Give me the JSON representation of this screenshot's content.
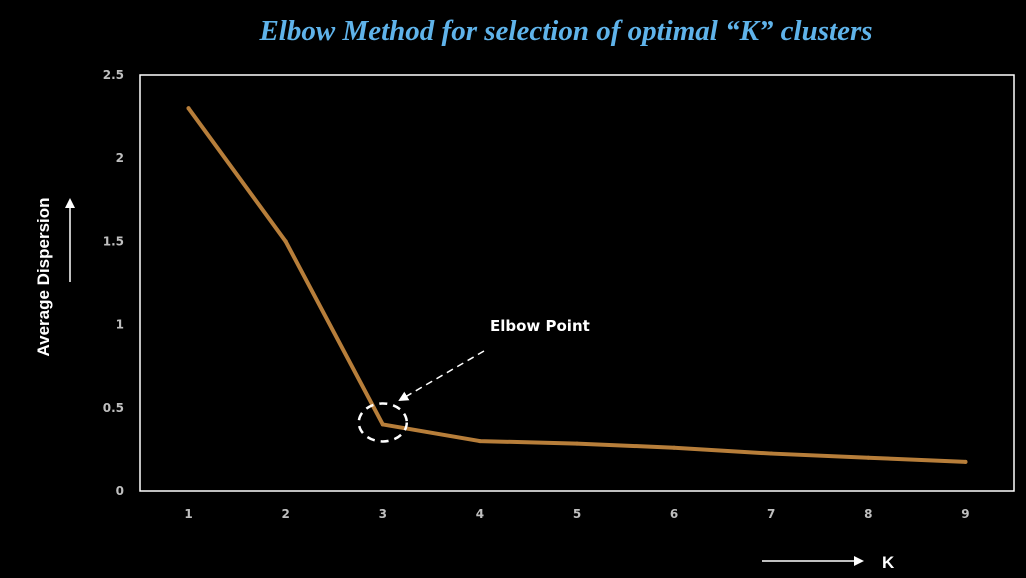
{
  "chart_data": {
    "type": "line",
    "title": "Elbow Method for selection of optimal “K” clusters",
    "xlabel": "K",
    "ylabel": "Average Dispersion",
    "x": [
      1,
      2,
      3,
      4,
      5,
      6,
      7,
      8,
      9
    ],
    "series": [
      {
        "values": [
          2.3,
          1.5,
          0.4,
          0.3,
          0.285,
          0.26,
          0.225,
          0.2,
          0.175
        ]
      }
    ],
    "ylim": [
      0,
      2.5
    ],
    "yticks": [
      "0",
      "0.5",
      "1",
      "1.5",
      "2",
      "2.5"
    ],
    "xticks": [
      "1",
      "2",
      "3",
      "4",
      "5",
      "6",
      "7",
      "8",
      "9"
    ],
    "grid": false,
    "legend": "none",
    "annotation": {
      "text": "Elbow Point",
      "target_x": 3,
      "target_y": 0.4
    },
    "colors": {
      "background": "#000000",
      "line": "#B77E3A",
      "title": "#5FB3EA",
      "axis": "#FFFFFF",
      "tick": "#BFBFBF",
      "text": "#FFFFFF"
    }
  }
}
